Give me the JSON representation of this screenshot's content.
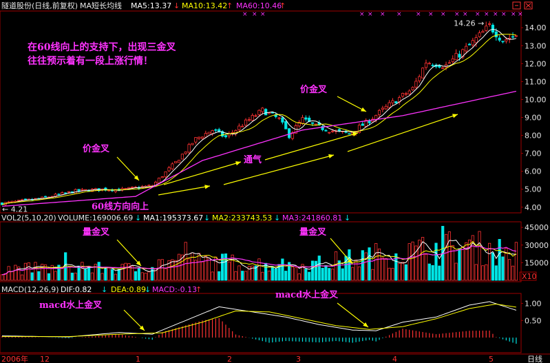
{
  "header": {
    "title": "隧道股份(日线,前复权)",
    "indicator": "MA短长均线",
    "ma5": "MA5:13.37",
    "ma10": "MA10:13.42",
    "ma60": "MA60:10.46",
    "high_label": "14.26",
    "low_label": "4.21"
  },
  "colors": {
    "background": "#000000",
    "up": "#ff3232",
    "down": "#00e6e6",
    "ma5": "#ffffff",
    "ma10": "#ffff00",
    "ma60": "#ff33ff",
    "axis": "#a00000",
    "arrow": "#ffff00",
    "dif": "#ffffff",
    "dea": "#ffff00"
  },
  "annotations": {
    "intro_line1": "在60线向上的支持下，出现三金叉",
    "intro_line2": "往往预示着有一段上涨行情！",
    "golden_cross_price_1": "价金叉",
    "golden_cross_price_2": "价金叉",
    "tongqi": "通气",
    "ma60_up": "60线方向向上",
    "golden_cross_vol_1": "量金叉",
    "golden_cross_vol_2": "量金叉",
    "golden_cross_macd_1": "macd水上金叉",
    "golden_cross_macd_2": "macd水上金叉"
  },
  "volume_header": {
    "name": "VOL2(5,10,20)",
    "volume": "VOLUME:169006.69",
    "ma1": "MA1:195373.67",
    "ma2": "MA2:233743.53",
    "ma3": "MA3:241860.81"
  },
  "macd_header": {
    "name": "MACD(12,26,9)",
    "dif": "DIF:0.82",
    "dea": "DEA:0.89",
    "macd": "MACD:-0.13"
  },
  "bottom_axis": {
    "labels": [
      "2006年",
      "12",
      "1",
      "2",
      "3",
      "4",
      "5"
    ],
    "period": "日线"
  },
  "volume_unit": "X10",
  "chart_data": [
    {
      "type": "candlestick",
      "title": "隧道股份(日线,前复权)",
      "y_ticks": [
        "4.00",
        "5.00",
        "6.00",
        "7.00",
        "8.00",
        "9.00",
        "10.00",
        "11.00",
        "12.00",
        "13.00",
        "14.00"
      ],
      "ylim": [
        3.8,
        14.7
      ],
      "series": [
        {
          "name": "MA5",
          "last": 13.37
        },
        {
          "name": "MA10",
          "last": 13.42
        },
        {
          "name": "MA60",
          "last": 10.46
        }
      ],
      "x_anchors": [
        [
          0,
          4.21
        ],
        [
          12,
          4.5
        ],
        [
          22,
          4.9
        ],
        [
          30,
          5.0
        ],
        [
          36,
          4.98
        ],
        [
          45,
          5.2
        ],
        [
          52,
          6.5
        ],
        [
          58,
          7.8
        ],
        [
          63,
          8.3
        ],
        [
          67,
          7.9
        ],
        [
          72,
          8.6
        ],
        [
          78,
          9.4
        ],
        [
          83,
          8.9
        ],
        [
          86,
          8.0
        ],
        [
          90,
          8.9
        ],
        [
          94,
          8.5
        ],
        [
          100,
          8.2
        ],
        [
          104,
          8.1
        ],
        [
          109,
          8.7
        ],
        [
          116,
          9.7
        ],
        [
          123,
          10.6
        ],
        [
          127,
          12.1
        ],
        [
          133,
          11.9
        ],
        [
          140,
          13.0
        ],
        [
          146,
          14.1
        ],
        [
          150,
          13.3
        ],
        [
          154,
          13.6
        ]
      ],
      "ma60_anchors": [
        [
          0,
          4.05
        ],
        [
          40,
          4.6
        ],
        [
          60,
          6.6
        ],
        [
          90,
          8.3
        ],
        [
          120,
          9.1
        ],
        [
          154,
          10.46
        ]
      ],
      "high": 14.26,
      "low": 4.21
    },
    {
      "type": "bar",
      "title": "VOL2(5,10,20)",
      "y_ticks": [
        "15000",
        "30000",
        "45000"
      ],
      "ylim": [
        0,
        48000
      ],
      "level_anchors": [
        [
          0,
          10000
        ],
        [
          40,
          10000
        ],
        [
          50,
          16000
        ],
        [
          60,
          16000
        ],
        [
          75,
          14000
        ],
        [
          90,
          12000
        ],
        [
          105,
          18000
        ],
        [
          115,
          22000
        ],
        [
          125,
          25000
        ],
        [
          135,
          28000
        ],
        [
          145,
          27000
        ],
        [
          154,
          22000
        ]
      ]
    },
    {
      "type": "bar",
      "title": "MACD(12,26,9)",
      "y_ticks": [
        "0.50",
        "1.00"
      ],
      "ylim": [
        -0.4,
        1.25
      ],
      "dif_anchors": [
        [
          0,
          0.05
        ],
        [
          20,
          0.02
        ],
        [
          35,
          0.15
        ],
        [
          45,
          0.1
        ],
        [
          55,
          0.5
        ],
        [
          65,
          0.9
        ],
        [
          75,
          0.75
        ],
        [
          85,
          0.6
        ],
        [
          95,
          0.38
        ],
        [
          105,
          0.22
        ],
        [
          112,
          0.2
        ],
        [
          120,
          0.45
        ],
        [
          130,
          0.6
        ],
        [
          140,
          0.95
        ],
        [
          146,
          1.05
        ],
        [
          154,
          0.8
        ]
      ],
      "dea_anchors": [
        [
          0,
          0.03
        ],
        [
          20,
          0.03
        ],
        [
          35,
          0.1
        ],
        [
          48,
          0.14
        ],
        [
          60,
          0.45
        ],
        [
          70,
          0.78
        ],
        [
          80,
          0.75
        ],
        [
          90,
          0.55
        ],
        [
          100,
          0.35
        ],
        [
          110,
          0.24
        ],
        [
          120,
          0.32
        ],
        [
          130,
          0.55
        ],
        [
          140,
          0.85
        ],
        [
          148,
          0.98
        ],
        [
          154,
          0.89
        ]
      ]
    }
  ]
}
